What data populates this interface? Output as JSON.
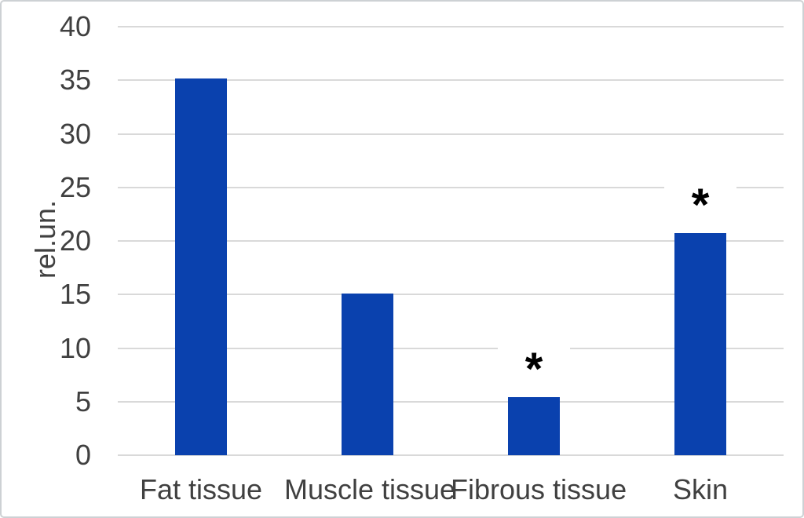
{
  "chart_data": {
    "type": "bar",
    "title": "",
    "xlabel": "",
    "ylabel": "rel.un.",
    "categories": [
      "Fat tissue",
      "Muscle tissue",
      "Fibrous tissue",
      "Skin"
    ],
    "values": [
      35.2,
      15.1,
      5.4,
      20.7
    ],
    "ylim": [
      0,
      40
    ],
    "yticks": [
      0,
      5,
      10,
      15,
      20,
      25,
      30,
      35,
      40
    ],
    "grid": true,
    "legend": false,
    "annotations": [
      {
        "category_index": 2,
        "symbol": "*",
        "y": 8.6,
        "meaning": "significance-marker"
      },
      {
        "category_index": 3,
        "symbol": "*",
        "y": 23.9,
        "meaning": "significance-marker"
      }
    ]
  },
  "colors": {
    "bar": "#0a41ae",
    "gridline": "#d9d9d9",
    "axis_text": "#404040",
    "annotation": "#000000",
    "chart_border": "#cdd1d4",
    "background": "#ffffff"
  }
}
